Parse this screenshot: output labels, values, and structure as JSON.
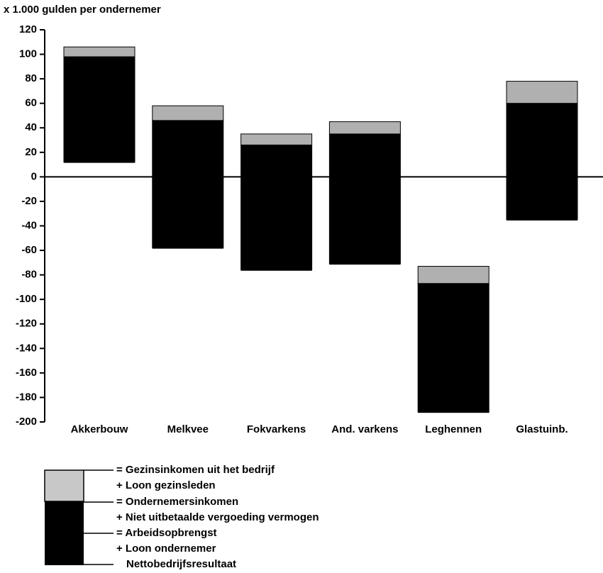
{
  "chart_data": {
    "type": "floating_stacked_bar",
    "y_label": "x 1.000 gulden per ondernemer",
    "categories": [
      "Akkerbouw",
      "Melkvee",
      "Fokvarkens",
      "And. varkens",
      "Leghennen",
      "Glastuinb."
    ],
    "base": {
      "values": [
        12,
        -58,
        -76,
        -71,
        -192,
        -35
      ]
    },
    "series": [
      {
        "color": "#000000",
        "values": [
          86,
          104,
          102,
          106,
          105,
          95
        ]
      },
      {
        "color": "#b0b0b0",
        "values": [
          8,
          12,
          9,
          10,
          14,
          18
        ]
      }
    ],
    "ylim": [
      -200,
      120
    ],
    "yticks": [
      120,
      100,
      80,
      60,
      40,
      20,
      0,
      -20,
      -40,
      -60,
      -80,
      -100,
      -120,
      -140,
      -160,
      -180,
      -200
    ],
    "legend_labels": [
      "= Gezinsinkomen uit het bedrijf",
      "+ Loon gezinsleden",
      "= Ondernemersinkomen",
      "+ Niet uitbetaalde vergoeding vermogen",
      "= Arbeidsopbrengst",
      "+ Loon ondernemer",
      "Nettobedrijfsresultaat"
    ]
  }
}
